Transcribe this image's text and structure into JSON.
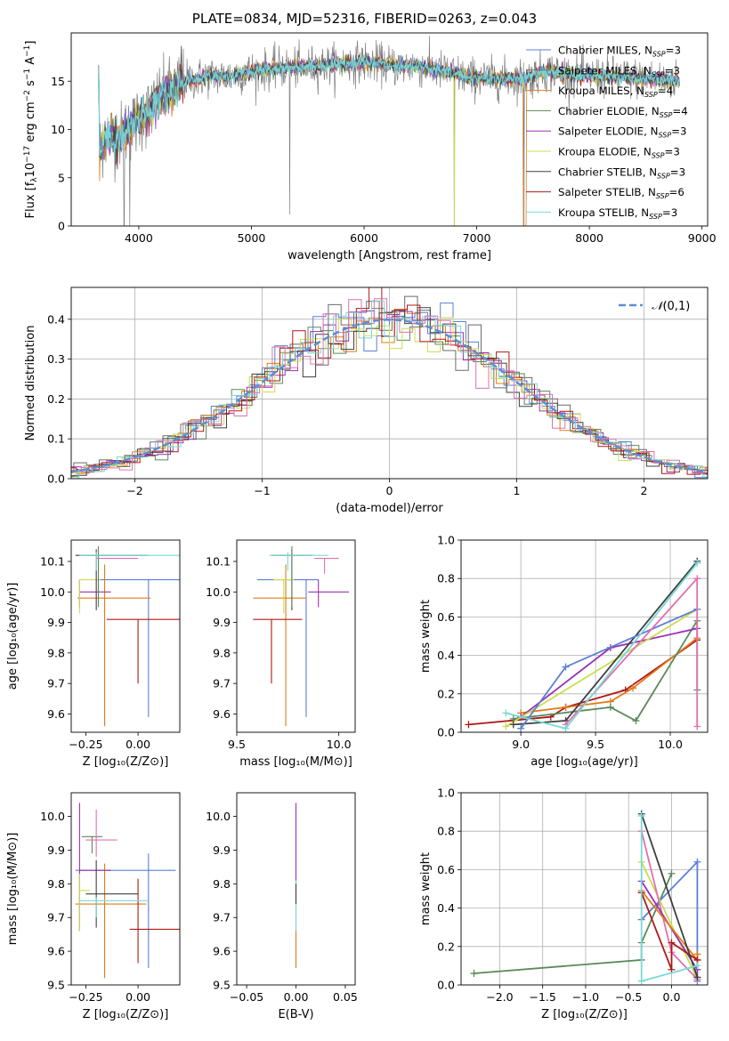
{
  "figure_title": "PLATE=0834, MJD=52316, FIBERID=0263, z=0.043",
  "colors": {
    "chabrier_miles": "#5b7fd6",
    "salpeter_miles": "#6b6b6b",
    "kroupa_miles": "#e07b18",
    "chabrier_elodie": "#5a8a5a",
    "salpeter_elodie": "#9b30b0",
    "kroupa_elodie": "#c8de50",
    "chabrier_stelib": "#404040",
    "salpeter_stelib": "#b01818",
    "kroupa_stelib": "#78d8d8",
    "extra_pink": "#e070b0",
    "dashed_normal": "#5b8fd6",
    "grid": "#b0b0b0"
  },
  "chart_data": [
    {
      "id": "spectrum",
      "type": "line",
      "xlabel": "wavelength [Angstrom, rest frame]",
      "ylabel": "Flux [f_λ10^-17 erg cm^-2 s^-1 A^-1]",
      "xlim": [
        3400,
        9050
      ],
      "ylim": [
        0,
        20
      ],
      "xticks": [
        4000,
        5000,
        6000,
        7000,
        8000,
        9000
      ],
      "yticks": [
        0,
        5,
        10,
        15
      ],
      "legend_position": "top-right",
      "legend": [
        {
          "model": "Chabrier MILES",
          "n": "3",
          "color_key": "chabrier_miles"
        },
        {
          "model": "Salpeter MILES",
          "n": "3",
          "color_key": "salpeter_miles"
        },
        {
          "model": "Kroupa MILES",
          "n": "4",
          "color_key": "kroupa_miles"
        },
        {
          "model": "Chabrier ELODIE",
          "n": "4",
          "color_key": "chabrier_elodie"
        },
        {
          "model": "Salpeter ELODIE",
          "n": "3",
          "color_key": "salpeter_elodie"
        },
        {
          "model": "Kroupa ELODIE",
          "n": "3",
          "color_key": "kroupa_elodie"
        },
        {
          "model": "Chabrier STELIB",
          "n": "3",
          "color_key": "chabrier_stelib"
        },
        {
          "model": "Salpeter STELIB",
          "n": "6",
          "color_key": "salpeter_stelib"
        },
        {
          "model": "Kroupa STELIB",
          "n": "3",
          "color_key": "kroupa_stelib"
        }
      ],
      "continuum": [
        [
          3650,
          8
        ],
        [
          3700,
          9
        ],
        [
          3750,
          9.5
        ],
        [
          3800,
          9
        ],
        [
          3900,
          10
        ],
        [
          4000,
          11
        ],
        [
          4100,
          12
        ],
        [
          4200,
          13.5
        ],
        [
          4300,
          14
        ],
        [
          4400,
          15
        ],
        [
          4500,
          15.2
        ],
        [
          4600,
          15.5
        ],
        [
          4800,
          15.5
        ],
        [
          5000,
          16
        ],
        [
          5200,
          16.3
        ],
        [
          5500,
          16.5
        ],
        [
          5800,
          16.8
        ],
        [
          6000,
          17
        ],
        [
          6300,
          16.6
        ],
        [
          6500,
          16.5
        ],
        [
          6700,
          16
        ],
        [
          6900,
          15.5
        ],
        [
          7000,
          15.3
        ],
        [
          7200,
          15.3
        ],
        [
          7400,
          15.3
        ],
        [
          7500,
          15.5
        ],
        [
          7600,
          16
        ],
        [
          7700,
          16
        ],
        [
          7800,
          15.7
        ],
        [
          8000,
          15.5
        ],
        [
          8200,
          15.5
        ],
        [
          8400,
          15.3
        ],
        [
          8600,
          15.2
        ],
        [
          8800,
          15
        ]
      ],
      "deep_features": [
        [
          3870,
          0
        ],
        [
          3920,
          0
        ],
        [
          5340,
          1.2
        ],
        [
          6800,
          0
        ],
        [
          7420,
          0
        ]
      ]
    },
    {
      "id": "residuals",
      "type": "step-histogram",
      "xlabel": "(data-model)/error",
      "ylabel": "Normed distribution",
      "xlim": [
        -2.5,
        2.5
      ],
      "ylim": [
        0,
        0.48
      ],
      "xticks": [
        -2,
        -1,
        0,
        1,
        2
      ],
      "yticks": [
        0.0,
        0.1,
        0.2,
        0.3,
        0.4
      ],
      "legend_position": "top-right",
      "normal_label": "𝒩(0,1)"
    },
    {
      "id": "age_vs_Z",
      "type": "errorbar",
      "xlabel": "Z [log₁₀(Z/Z⊙)]",
      "ylabel": "age  [log₁₀(age/yr)]",
      "xlim": [
        -0.32,
        0.2
      ],
      "ylim": [
        9.54,
        10.17
      ],
      "xticks": [
        -0.25,
        0.0
      ],
      "yticks": [
        9.6,
        9.7,
        9.8,
        9.9,
        10.0,
        10.1
      ],
      "points": [
        {
          "c": "chabrier_miles",
          "x": 0.05,
          "xerr": [
            0.25,
            0.3
          ],
          "y": 10.04,
          "yerr": [
            0.45,
            0.0
          ]
        },
        {
          "c": "kroupa_miles",
          "x": -0.16,
          "xerr": [
            0.13,
            0.22
          ],
          "y": 9.98,
          "yerr": [
            0.42,
            0.11
          ]
        },
        {
          "c": "salpeter_stelib",
          "x": 0.0,
          "xerr": [
            0.15,
            0.35
          ],
          "y": 9.91,
          "yerr": [
            0.21,
            0.0
          ]
        },
        {
          "c": "salpeter_elodie",
          "x": -0.28,
          "xerr": [
            0.0,
            0.15
          ],
          "y": 10.0,
          "yerr": [
            0.05,
            0.04
          ]
        },
        {
          "c": "kroupa_elodie",
          "x": -0.28,
          "xerr": [
            0.0,
            0.1
          ],
          "y": 10.04,
          "yerr": [
            0.11,
            0.0
          ]
        },
        {
          "c": "chabrier_stelib",
          "x": -0.2,
          "xerr": [
            0.1,
            0.25
          ],
          "y": 10.12,
          "yerr": [
            0.18,
            0.02
          ]
        },
        {
          "c": "chabrier_elodie",
          "x": -0.19,
          "xerr": [
            0.05,
            0.05
          ],
          "y": 10.12,
          "yerr": [
            0.17,
            0.03
          ]
        },
        {
          "c": "extra_pink",
          "x": -0.15,
          "xerr": [
            0.05,
            0.15
          ],
          "y": 10.11,
          "yerr": [
            0.0,
            0.0
          ]
        },
        {
          "c": "kroupa_stelib",
          "x": -0.2,
          "xerr": [
            0.08,
            0.4
          ],
          "y": 10.12,
          "yerr": [
            0.05,
            0.01
          ]
        }
      ]
    },
    {
      "id": "age_vs_mass",
      "type": "errorbar",
      "xlabel": "mass [log₁₀(M/M⊙)]",
      "ylabel": "",
      "xlim": [
        9.5,
        10.08
      ],
      "ylim": [
        9.54,
        10.17
      ],
      "xticks": [
        9.5,
        10.0
      ],
      "yticks": [
        9.6,
        9.7,
        9.8,
        9.9,
        10.0,
        10.1
      ],
      "points": [
        {
          "c": "chabrier_miles",
          "x": 9.84,
          "xerr": [
            0.24,
            0.06
          ],
          "y": 10.04,
          "yerr": [
            0.45,
            0.0
          ]
        },
        {
          "c": "kroupa_miles",
          "x": 9.74,
          "xerr": [
            0.16,
            0.1
          ],
          "y": 9.98,
          "yerr": [
            0.42,
            0.11
          ]
        },
        {
          "c": "salpeter_stelib",
          "x": 9.67,
          "xerr": [
            0.09,
            0.15
          ],
          "y": 9.91,
          "yerr": [
            0.21,
            0.0
          ]
        },
        {
          "c": "salpeter_elodie",
          "x": 9.9,
          "xerr": [
            0.05,
            0.15
          ],
          "y": 10.0,
          "yerr": [
            0.05,
            0.04
          ]
        },
        {
          "c": "kroupa_elodie",
          "x": 9.73,
          "xerr": [
            0.05,
            0.05
          ],
          "y": 10.04,
          "yerr": [
            0.11,
            0.0
          ]
        },
        {
          "c": "chabrier_stelib",
          "x": 9.77,
          "xerr": [
            0.1,
            0.1
          ],
          "y": 10.12,
          "yerr": [
            0.18,
            0.02
          ]
        },
        {
          "c": "chabrier_elodie",
          "x": 9.77,
          "xerr": [
            0.05,
            0.05
          ],
          "y": 10.12,
          "yerr": [
            0.17,
            0.03
          ]
        },
        {
          "c": "extra_pink",
          "x": 9.93,
          "xerr": [
            0.05,
            0.07
          ],
          "y": 10.11,
          "yerr": [
            0.05,
            0.0
          ]
        },
        {
          "c": "kroupa_stelib",
          "x": 9.75,
          "xerr": [
            0.09,
            0.2
          ],
          "y": 10.12,
          "yerr": [
            0.05,
            0.01
          ]
        }
      ]
    },
    {
      "id": "weight_vs_age",
      "type": "line",
      "xlabel": "age  [log₁₀(age/yr)]",
      "ylabel": "mass weight",
      "xlim": [
        8.6,
        10.25
      ],
      "ylim": [
        0,
        1.0
      ],
      "xticks": [
        9.0,
        9.5,
        10.0
      ],
      "yticks": [
        0.0,
        0.2,
        0.4,
        0.6,
        0.8,
        1.0
      ],
      "series": [
        {
          "c": "salpeter_stelib",
          "points": [
            [
              8.65,
              0.04
            ],
            [
              9.2,
              0.08
            ],
            [
              9.3,
              0.13
            ],
            [
              9.7,
              0.22
            ],
            [
              10.18,
              0.48
            ]
          ]
        },
        {
          "c": "kroupa_miles",
          "points": [
            [
              9.0,
              0.1
            ],
            [
              9.3,
              0.13
            ],
            [
              9.6,
              0.16
            ],
            [
              9.75,
              0.23
            ],
            [
              10.18,
              0.49
            ]
          ]
        },
        {
          "c": "chabrier_elodie",
          "points": [
            [
              8.95,
              0.07
            ],
            [
              9.6,
              0.13
            ],
            [
              9.77,
              0.06
            ],
            [
              10.18,
              0.58
            ],
            [
              10.18,
              0.22
            ]
          ]
        },
        {
          "c": "salpeter_elodie",
          "points": [
            [
              9.0,
              0.08
            ],
            [
              9.6,
              0.44
            ],
            [
              10.18,
              0.54
            ]
          ]
        },
        {
          "c": "kroupa_elodie",
          "points": [
            [
              8.9,
              0.03
            ],
            [
              10.18,
              0.64
            ]
          ]
        },
        {
          "c": "chabrier_stelib",
          "points": [
            [
              8.95,
              0.04
            ],
            [
              9.3,
              0.06
            ],
            [
              10.18,
              0.89
            ]
          ]
        },
        {
          "c": "chabrier_miles",
          "points": [
            [
              9.0,
              0.02
            ],
            [
              9.3,
              0.34
            ],
            [
              10.18,
              0.64
            ]
          ]
        },
        {
          "c": "extra_pink",
          "points": [
            [
              9.3,
              0.04
            ],
            [
              10.18,
              0.8
            ],
            [
              10.18,
              0.03
            ]
          ]
        },
        {
          "c": "kroupa_stelib",
          "points": [
            [
              8.9,
              0.1
            ],
            [
              9.3,
              0.02
            ],
            [
              10.18,
              0.88
            ]
          ]
        }
      ]
    },
    {
      "id": "mass_vs_Z",
      "type": "errorbar",
      "xlabel": "Z [log₁₀(Z/Z⊙)]",
      "ylabel": "mass [log₁₀(M/M⊙)]",
      "xlim": [
        -0.32,
        0.2
      ],
      "ylim": [
        9.5,
        10.07
      ],
      "xticks": [
        -0.25,
        0.0
      ],
      "yticks": [
        9.5,
        9.6,
        9.7,
        9.8,
        9.9,
        10.0
      ],
      "points": [
        {
          "c": "chabrier_miles",
          "x": 0.05,
          "xerr": [
            0.35,
            0.13
          ],
          "y": 9.84,
          "yerr": [
            0.29,
            0.05
          ]
        },
        {
          "c": "kroupa_miles",
          "x": -0.16,
          "xerr": [
            0.14,
            0.2
          ],
          "y": 9.74,
          "yerr": [
            0.22,
            0.12
          ]
        },
        {
          "c": "salpeter_stelib",
          "x": 0.0,
          "xerr": [
            0.04,
            0.35
          ],
          "y": 9.665,
          "yerr": [
            0.1,
            0.15
          ]
        },
        {
          "c": "salpeter_elodie",
          "x": -0.28,
          "xerr": [
            0.0,
            0.15
          ],
          "y": 9.84,
          "yerr": [
            0.18,
            0.2
          ]
        },
        {
          "c": "kroupa_elodie",
          "x": -0.28,
          "xerr": [
            0.0,
            0.05
          ],
          "y": 9.78,
          "yerr": [
            0.12,
            0.05
          ]
        },
        {
          "c": "chabrier_stelib",
          "x": -0.2,
          "xerr": [
            0.05,
            0.2
          ],
          "y": 9.77,
          "yerr": [
            0.1,
            0.1
          ]
        },
        {
          "c": "chabrier_elodie",
          "x": -0.22,
          "xerr": [
            0.05,
            0.05
          ],
          "y": 9.94,
          "yerr": [
            0.05,
            0.0
          ]
        },
        {
          "c": "extra_pink",
          "x": -0.2,
          "xerr": [
            0.05,
            0.1
          ],
          "y": 9.93,
          "yerr": [
            0.05,
            0.09
          ]
        },
        {
          "c": "kroupa_stelib",
          "x": -0.2,
          "xerr": [
            0.08,
            0.25
          ],
          "y": 9.75,
          "yerr": [
            0.05,
            0.01
          ]
        }
      ]
    },
    {
      "id": "mass_vs_ebv",
      "type": "errorbar",
      "xlabel": "E(B-V)",
      "ylabel": "",
      "xlim": [
        -0.06,
        0.06
      ],
      "ylim": [
        9.5,
        10.07
      ],
      "xticks": [
        -0.05,
        0.0,
        0.05
      ],
      "yticks": [
        9.5,
        9.6,
        9.7,
        9.8,
        9.9,
        10.0
      ],
      "points": [
        {
          "c": "salpeter_elodie",
          "x": 0.0,
          "xerr": [
            0,
            0
          ],
          "y": 9.84,
          "yerr": [
            0.05,
            0.2
          ]
        },
        {
          "c": "kroupa_miles",
          "x": 0.0,
          "xerr": [
            0,
            0
          ],
          "y": 9.7,
          "yerr": [
            0.15,
            0.05
          ]
        },
        {
          "c": "kroupa_stelib",
          "x": 0.0,
          "xerr": [
            0,
            0
          ],
          "y": 9.76,
          "yerr": [
            0.1,
            0.05
          ]
        },
        {
          "c": "chabrier_stelib",
          "x": 0.0,
          "xerr": [
            0,
            0
          ],
          "y": 9.77,
          "yerr": [
            0.03,
            0.03
          ]
        }
      ]
    },
    {
      "id": "weight_vs_Z",
      "type": "line",
      "xlabel": "Z [log₁₀(Z/Z⊙)]",
      "ylabel": "mass weight",
      "xlim": [
        -2.45,
        0.42
      ],
      "ylim": [
        0,
        1.0
      ],
      "xticks": [
        -2.0,
        -1.5,
        -1.0,
        -0.5,
        0.0
      ],
      "yticks": [
        0.0,
        0.2,
        0.4,
        0.6,
        0.8,
        1.0
      ],
      "series": [
        {
          "c": "chabrier_elodie",
          "points": [
            [
              -2.3,
              0.06
            ],
            [
              -0.35,
              0.13
            ],
            [
              -0.35,
              0.22
            ],
            [
              0.0,
              0.58
            ]
          ]
        },
        {
          "c": "chabrier_miles",
          "points": [
            [
              -0.35,
              0.34
            ],
            [
              0.3,
              0.64
            ],
            [
              0.3,
              0.02
            ]
          ]
        },
        {
          "c": "kroupa_elodie",
          "points": [
            [
              -0.35,
              0.64
            ],
            [
              0.3,
              0.03
            ]
          ]
        },
        {
          "c": "extra_pink",
          "points": [
            [
              -0.35,
              0.8
            ],
            [
              0.0,
              0.17
            ],
            [
              0.3,
              0.03
            ]
          ]
        },
        {
          "c": "salpeter_elodie",
          "points": [
            [
              -0.35,
              0.54
            ],
            [
              0.3,
              0.08
            ]
          ]
        },
        {
          "c": "kroupa_miles",
          "points": [
            [
              -0.35,
              0.49
            ],
            [
              0.3,
              0.13
            ],
            [
              0.3,
              0.16
            ]
          ]
        },
        {
          "c": "salpeter_stelib",
          "points": [
            [
              -0.35,
              0.48
            ],
            [
              0.0,
              0.08
            ],
            [
              0.0,
              0.22
            ],
            [
              0.3,
              0.13
            ]
          ]
        },
        {
          "c": "chabrier_stelib",
          "points": [
            [
              -0.35,
              0.89
            ],
            [
              0.3,
              0.04
            ]
          ]
        },
        {
          "c": "kroupa_stelib",
          "points": [
            [
              -0.35,
              0.88
            ],
            [
              -0.35,
              0.02
            ],
            [
              0.3,
              0.1
            ]
          ]
        }
      ]
    }
  ]
}
